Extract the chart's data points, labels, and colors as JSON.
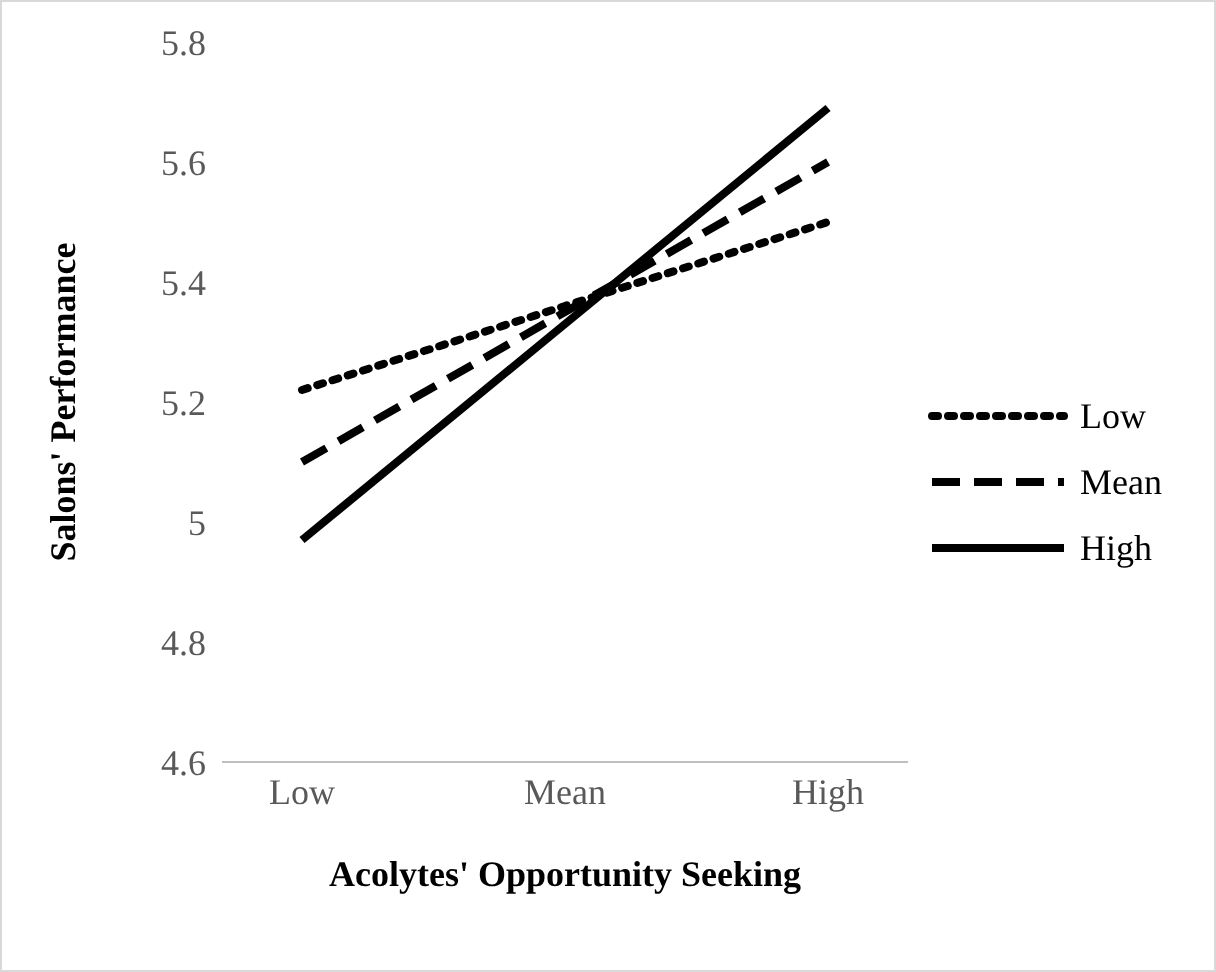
{
  "chart_data": {
    "type": "line",
    "xlabel": "Acolytes' Opportunity Seeking",
    "ylabel": "Salons' Performance",
    "categories": [
      "Low",
      "Mean",
      "High"
    ],
    "series": [
      {
        "name": "Low",
        "color": "#000000",
        "line_style": "dotted",
        "values": [
          5.22,
          5.36,
          5.5
        ]
      },
      {
        "name": "Mean",
        "color": "#000000",
        "line_style": "dashed",
        "values": [
          5.1,
          5.35,
          5.6
        ]
      },
      {
        "name": "High",
        "color": "#000000",
        "line_style": "solid",
        "values": [
          4.97,
          5.33,
          5.69
        ]
      }
    ],
    "ylim": [
      4.6,
      5.8
    ],
    "yticks": [
      4.6,
      4.8,
      5,
      5.2,
      5.4,
      5.6,
      5.8
    ],
    "grid": false,
    "legend": "right",
    "marker": "none"
  }
}
